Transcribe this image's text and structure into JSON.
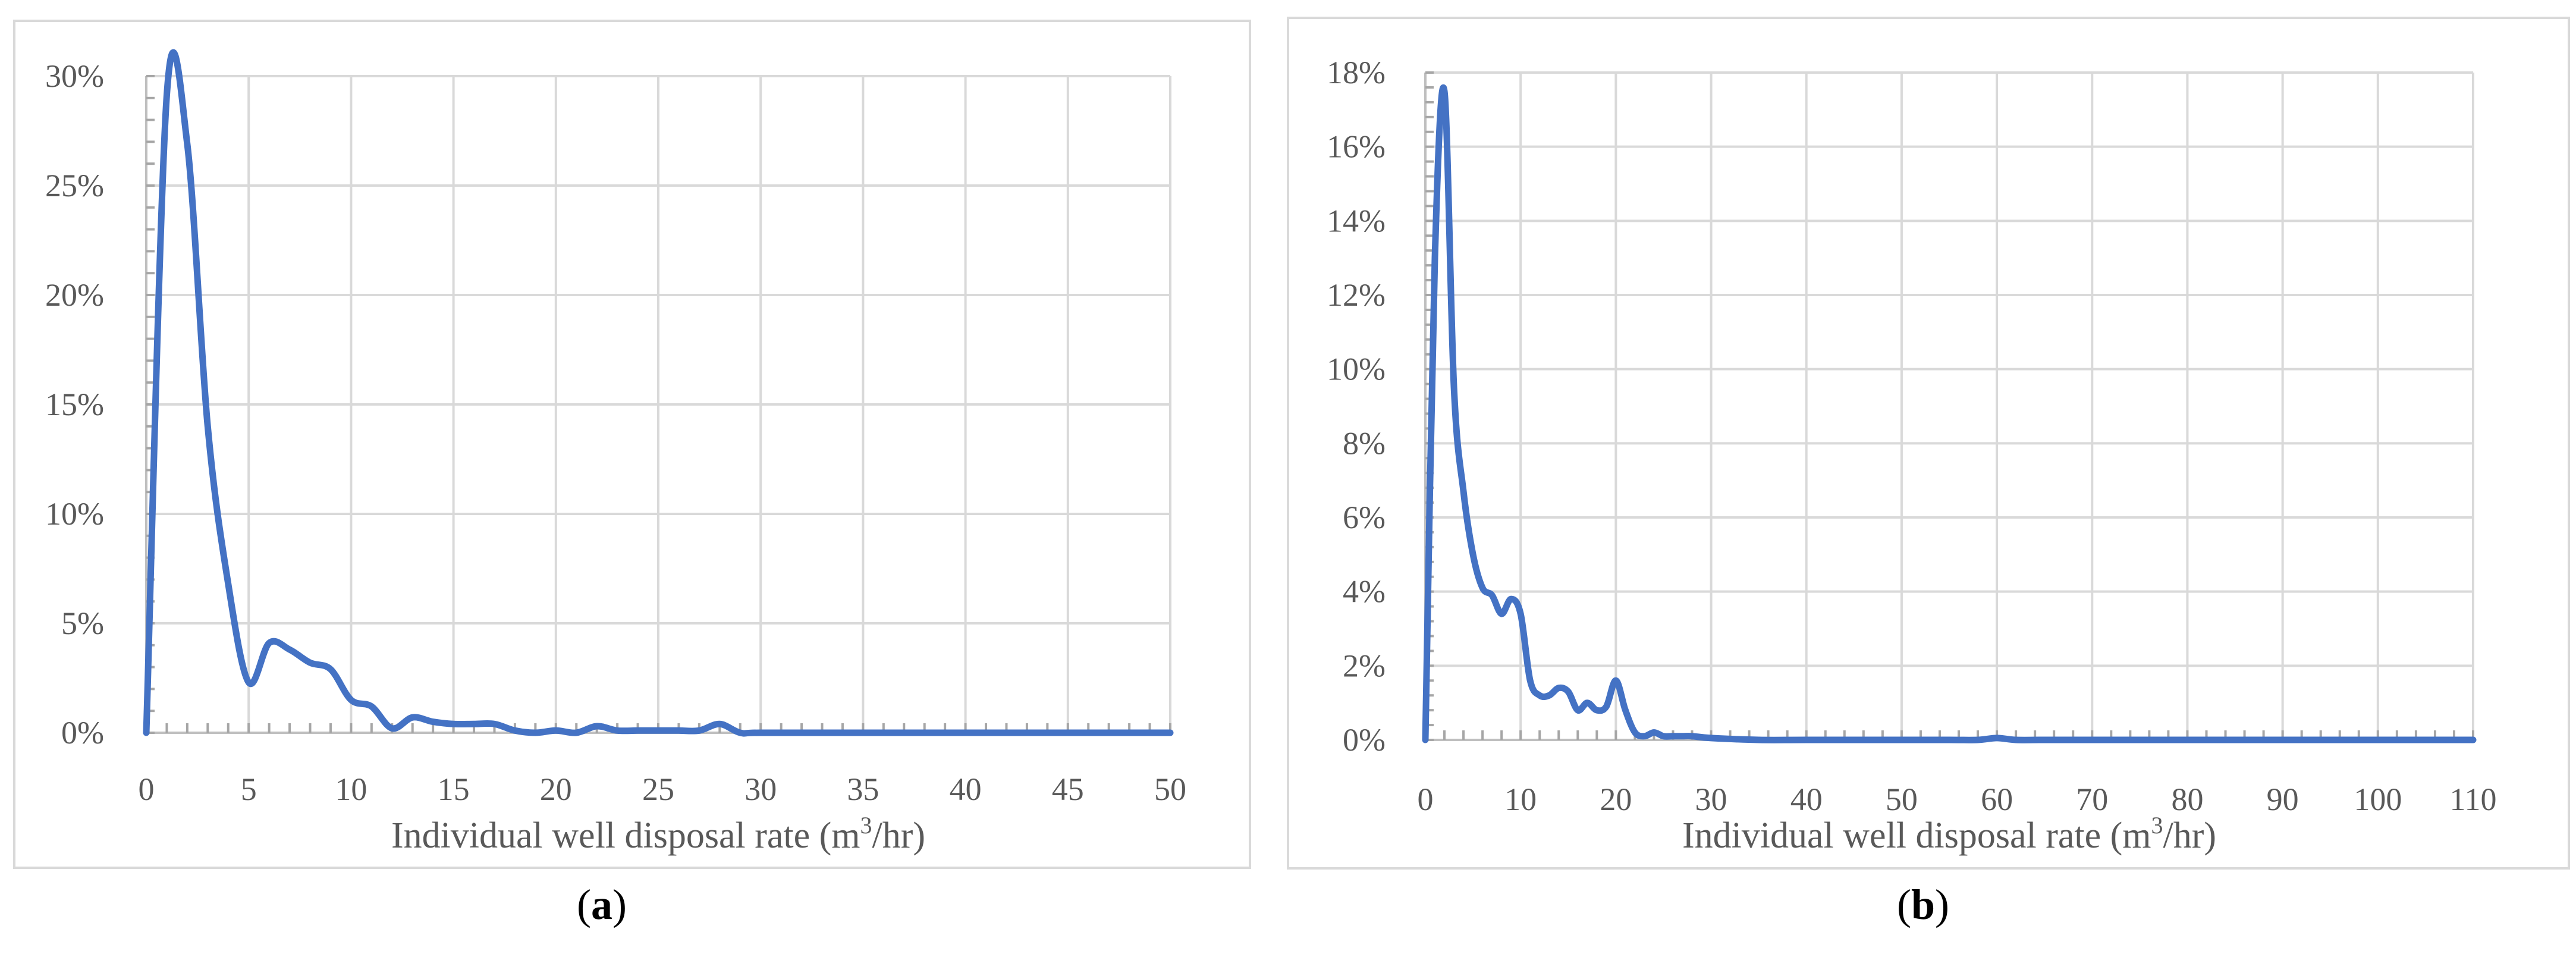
{
  "chart_data": [
    {
      "id": "a",
      "type": "line",
      "panel_label": "a",
      "title": "",
      "xlabel": "Individual well disposal rate (m³/hr)",
      "xlabel_main": "Individual well disposal rate (m",
      "xlabel_sup": "3",
      "xlabel_tail": "/hr)",
      "ylabel": "",
      "xlim": [
        0,
        50
      ],
      "ylim": [
        0,
        30
      ],
      "x_ticks": [
        0,
        5,
        10,
        15,
        20,
        25,
        30,
        35,
        40,
        45,
        50
      ],
      "x_tick_labels": [
        "0",
        "5",
        "10",
        "15",
        "20",
        "25",
        "30",
        "35",
        "40",
        "45",
        "50"
      ],
      "y_ticks": [
        0,
        5,
        10,
        15,
        20,
        25,
        30
      ],
      "y_tick_labels": [
        "0%",
        "5%",
        "10%",
        "15%",
        "20%",
        "25%",
        "30%"
      ],
      "grid": true,
      "line_color": "#4472c4",
      "grid_color": "#d9d9d9",
      "series": [
        {
          "x": [
            0,
            1,
            2,
            3,
            4,
            5,
            6,
            7,
            8,
            9,
            10,
            11,
            12,
            13,
            14,
            15,
            16,
            17,
            18,
            19,
            20,
            21,
            22,
            23,
            24,
            25,
            26,
            27,
            28,
            29,
            30,
            35,
            40,
            45,
            50
          ],
          "values": [
            0,
            29.1,
            26.9,
            14.0,
            6.8,
            2.3,
            4.1,
            3.8,
            3.2,
            2.9,
            1.5,
            1.2,
            0.2,
            0.7,
            0.5,
            0.4,
            0.4,
            0.4,
            0.1,
            0.0,
            0.1,
            0.0,
            0.3,
            0.1,
            0.1,
            0.1,
            0.1,
            0.1,
            0.4,
            0.0,
            0.0,
            0.0,
            0.0,
            0.0,
            0.0
          ]
        }
      ]
    },
    {
      "id": "b",
      "type": "line",
      "panel_label": "b",
      "title": "",
      "xlabel": "Individual well disposal rate (m³/hr)",
      "xlabel_main": "Individual well disposal rate (m",
      "xlabel_sup": "3",
      "xlabel_tail": "/hr)",
      "ylabel": "",
      "xlim": [
        0,
        110
      ],
      "ylim": [
        0,
        18
      ],
      "x_ticks": [
        0,
        10,
        20,
        30,
        40,
        50,
        60,
        70,
        80,
        90,
        100,
        110
      ],
      "x_tick_labels": [
        "0",
        "10",
        "20",
        "30",
        "40",
        "50",
        "60",
        "70",
        "80",
        "90",
        "100",
        "110"
      ],
      "y_ticks": [
        0,
        2,
        4,
        6,
        8,
        10,
        12,
        14,
        16,
        18
      ],
      "y_tick_labels": [
        "0%",
        "2%",
        "4%",
        "6%",
        "8%",
        "10%",
        "12%",
        "14%",
        "16%",
        "18%"
      ],
      "grid": true,
      "line_color": "#4472c4",
      "grid_color": "#d9d9d9",
      "series": [
        {
          "x": [
            0,
            1,
            2,
            3,
            4,
            5,
            6,
            7,
            8,
            9,
            10,
            11,
            12,
            13,
            14,
            15,
            16,
            17,
            18,
            19,
            20,
            21,
            22,
            23,
            24,
            25,
            26,
            27,
            28,
            30,
            35,
            40,
            50,
            55,
            58,
            60,
            62,
            65,
            70,
            80,
            90,
            100,
            110
          ],
          "values": [
            0,
            13.0,
            17.5,
            9.5,
            6.7,
            5.0,
            4.1,
            3.9,
            3.4,
            3.8,
            3.4,
            1.6,
            1.2,
            1.2,
            1.4,
            1.3,
            0.8,
            1.0,
            0.8,
            0.9,
            1.6,
            0.8,
            0.2,
            0.1,
            0.2,
            0.1,
            0.1,
            0.1,
            0.1,
            0.05,
            0.0,
            0.0,
            0.0,
            0.0,
            0.0,
            0.05,
            0.0,
            0.0,
            0.0,
            0.0,
            0.0,
            0.0,
            0.0
          ]
        }
      ]
    }
  ]
}
